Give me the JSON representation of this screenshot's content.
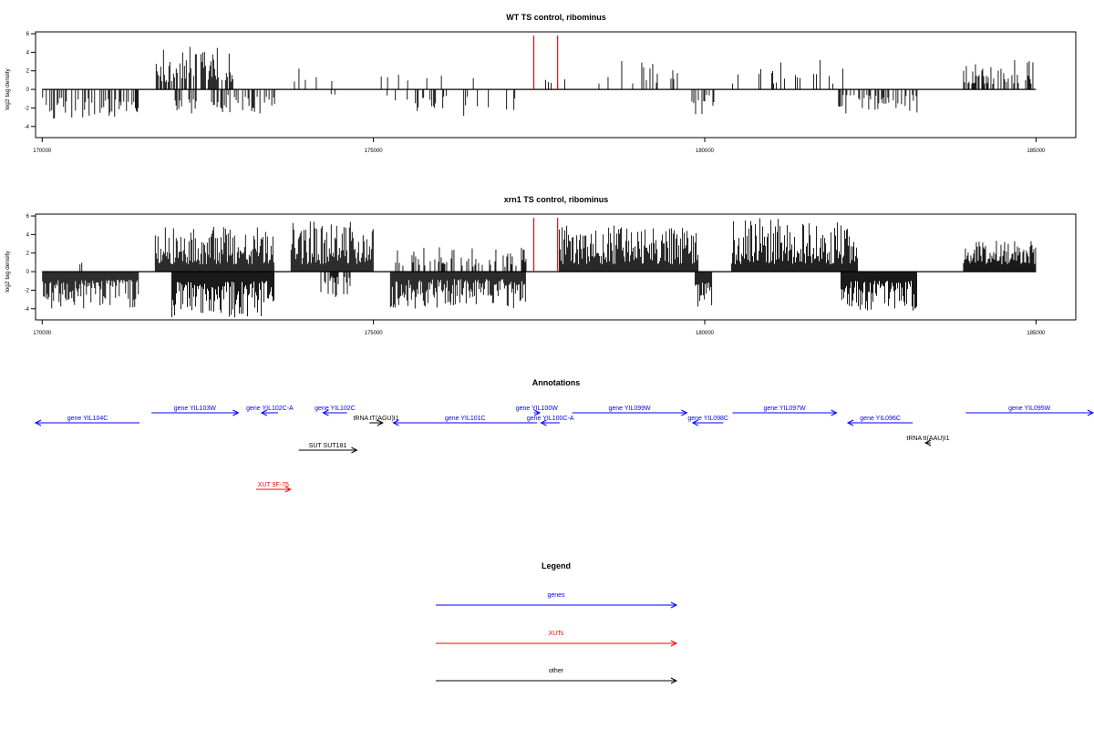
{
  "chart_data": [
    {
      "type": "bar",
      "title": "WT TS control, ribominus",
      "ylabel": "log2 tag density",
      "xlabel": "",
      "xlim": [
        169900,
        185600
      ],
      "ylim": [
        -5.2,
        6.2
      ],
      "xticks": [
        170000,
        175000,
        180000,
        185000
      ],
      "yticks": [
        -4,
        -2,
        0,
        2,
        4,
        6
      ],
      "grid": false,
      "signal_segments": [
        {
          "strand": "minus",
          "start": 170000,
          "end": 171400,
          "min": 0.9,
          "max": 3.3,
          "density": 0.45
        },
        {
          "strand": "minus",
          "start": 171400,
          "end": 171450,
          "min": 2.0,
          "max": 2.6,
          "density": 1.0
        },
        {
          "strand": "plus",
          "start": 171700,
          "end": 172900,
          "min": 0.8,
          "max": 4.8,
          "density": 0.6
        },
        {
          "strand": "minus",
          "start": 172000,
          "end": 173500,
          "min": 0.6,
          "max": 2.6,
          "density": 0.35
        },
        {
          "strand": "plus",
          "start": 173500,
          "end": 173650,
          "min": 0.8,
          "max": 1.4,
          "density": 0.3
        },
        {
          "strand": "plus",
          "start": 173800,
          "end": 174400,
          "min": 0.8,
          "max": 3.8,
          "density": 0.1
        },
        {
          "strand": "minus",
          "start": 174300,
          "end": 174450,
          "min": 0.5,
          "max": 1.5,
          "density": 0.15
        },
        {
          "strand": "plus",
          "start": 175000,
          "end": 176700,
          "min": 0.8,
          "max": 1.8,
          "density": 0.08
        },
        {
          "strand": "minus",
          "start": 175200,
          "end": 177200,
          "min": 0.6,
          "max": 3.3,
          "density": 0.2
        },
        {
          "strand": "plus",
          "start": 177400,
          "end": 178100,
          "min": 0.6,
          "max": 1.8,
          "density": 0.05
        },
        {
          "strand": "plus",
          "start": 178300,
          "end": 179600,
          "min": 0.6,
          "max": 3.3,
          "density": 0.1
        },
        {
          "strand": "minus",
          "start": 179800,
          "end": 180250,
          "min": 0.6,
          "max": 2.8,
          "density": 0.3
        },
        {
          "strand": "plus",
          "start": 180400,
          "end": 182100,
          "min": 0.6,
          "max": 3.2,
          "density": 0.15
        },
        {
          "strand": "minus",
          "start": 182000,
          "end": 183200,
          "min": 0.6,
          "max": 2.6,
          "density": 0.5
        },
        {
          "strand": "plus",
          "start": 183900,
          "end": 184950,
          "min": 0.6,
          "max": 3.2,
          "density": 0.5
        }
      ],
      "highlight_lines": {
        "color": "#ff0000",
        "x": [
          177420,
          177780
        ],
        "y": 5.8
      }
    },
    {
      "type": "bar",
      "title": "xrn1 TS control, ribominus",
      "ylabel": "log2 tag density",
      "xlabel": "",
      "xlim": [
        169900,
        185600
      ],
      "ylim": [
        -5.2,
        6.2
      ],
      "xticks": [
        170000,
        175000,
        180000,
        185000
      ],
      "yticks": [
        -4,
        -2,
        0,
        2,
        4,
        6
      ],
      "grid": false,
      "signal_segments": [
        {
          "strand": "minus",
          "start": 170000,
          "end": 171450,
          "min": 0.9,
          "max": 4.0,
          "density": 1.3
        },
        {
          "strand": "plus",
          "start": 170550,
          "end": 170600,
          "min": 0.5,
          "max": 1.0,
          "density": 0.5
        },
        {
          "strand": "plus",
          "start": 171700,
          "end": 173500,
          "min": 0.8,
          "max": 4.9,
          "density": 1.3
        },
        {
          "strand": "minus",
          "start": 171950,
          "end": 173500,
          "min": 1.0,
          "max": 5.0,
          "density": 1.5
        },
        {
          "strand": "plus",
          "start": 173750,
          "end": 175000,
          "min": 0.8,
          "max": 5.4,
          "density": 1.4
        },
        {
          "strand": "minus",
          "start": 174200,
          "end": 174650,
          "min": 0.5,
          "max": 3.0,
          "density": 0.5
        },
        {
          "strand": "minus",
          "start": 175250,
          "end": 177300,
          "min": 0.8,
          "max": 4.0,
          "density": 1.2
        },
        {
          "strand": "plus",
          "start": 175300,
          "end": 177300,
          "min": 0.5,
          "max": 2.7,
          "density": 0.35
        },
        {
          "strand": "plus",
          "start": 177800,
          "end": 179900,
          "min": 0.8,
          "max": 5.0,
          "density": 1.3
        },
        {
          "strand": "minus",
          "start": 179850,
          "end": 180100,
          "min": 1.0,
          "max": 3.8,
          "density": 1.2
        },
        {
          "strand": "plus",
          "start": 180400,
          "end": 182300,
          "min": 0.8,
          "max": 5.8,
          "density": 1.1
        },
        {
          "strand": "minus",
          "start": 182050,
          "end": 183200,
          "min": 1.0,
          "max": 4.2,
          "density": 1.3
        },
        {
          "strand": "plus",
          "start": 183900,
          "end": 185000,
          "min": 0.8,
          "max": 3.4,
          "density": 1.1
        }
      ],
      "highlight_lines": {
        "color": "#ff0000",
        "x": [
          177420,
          177780
        ],
        "y": 5.8
      }
    }
  ],
  "annotations": {
    "title": "Annotations",
    "colors": {
      "gene": "#0000ff",
      "xut": "#ff0000",
      "other": "#000000"
    },
    "features": [
      {
        "label": "gene YIL104C",
        "kind": "gene",
        "start": 169900,
        "end": 171470,
        "strand": "-",
        "row": 1
      },
      {
        "label": "gene YIL103W",
        "kind": "gene",
        "start": 171650,
        "end": 172960,
        "strand": "+",
        "row": 0
      },
      {
        "label": "gene YIL102C-A",
        "kind": "gene",
        "start": 173310,
        "end": 173560,
        "strand": "-",
        "row": 0
      },
      {
        "label": "gene YIL102C",
        "kind": "gene",
        "start": 174240,
        "end": 174600,
        "strand": "-",
        "row": 0
      },
      {
        "label": "tRNA tT(AGU)I1",
        "kind": "other",
        "start": 174940,
        "end": 175140,
        "strand": "+",
        "row": 1
      },
      {
        "label": "gene YIL101C",
        "kind": "gene",
        "start": 175300,
        "end": 177470,
        "strand": "-",
        "row": 1
      },
      {
        "label": "gene YIL100W",
        "kind": "gene",
        "start": 177420,
        "end": 177510,
        "strand": "+",
        "row": 0
      },
      {
        "label": "gene YIL100C-A",
        "kind": "gene",
        "start": 177530,
        "end": 177810,
        "strand": "-",
        "row": 1
      },
      {
        "label": "gene YIL099W",
        "kind": "gene",
        "start": 178000,
        "end": 179730,
        "strand": "+",
        "row": 0
      },
      {
        "label": "gene YIL098C",
        "kind": "gene",
        "start": 179820,
        "end": 180280,
        "strand": "-",
        "row": 1
      },
      {
        "label": "gene YIL097W",
        "kind": "gene",
        "start": 180420,
        "end": 181990,
        "strand": "+",
        "row": 0
      },
      {
        "label": "gene YIL096C",
        "kind": "gene",
        "start": 182160,
        "end": 183140,
        "strand": "-",
        "row": 1
      },
      {
        "label": "tRNA tI(AAU)I1",
        "kind": "other",
        "start": 183330,
        "end": 183410,
        "strand": "-",
        "row": 2
      },
      {
        "label": "gene YIL095W",
        "kind": "gene",
        "start": 183940,
        "end": 185900,
        "strand": "+",
        "row": 0
      },
      {
        "label": "SUT SUT181",
        "kind": "other",
        "start": 173870,
        "end": 174750,
        "strand": "+",
        "row": 3
      },
      {
        "label": "XUT 9F-75",
        "kind": "xut",
        "start": 173230,
        "end": 173750,
        "strand": "+",
        "row": 5
      }
    ]
  },
  "legend": {
    "title": "Legend",
    "items": [
      {
        "label": "genes",
        "color": "#0000ff"
      },
      {
        "label": "XUTs",
        "color": "#ff0000"
      },
      {
        "label": "other",
        "color": "#000000"
      }
    ]
  }
}
